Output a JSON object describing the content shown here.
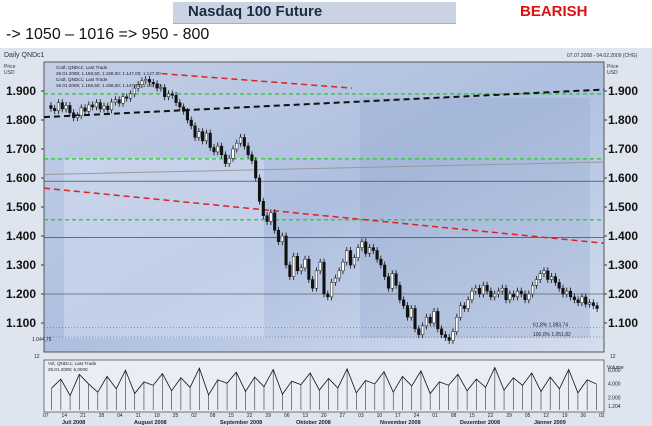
{
  "header": {
    "title": "Nasdaq 100 Future",
    "signal": "BEARISH"
  },
  "subtitle": "-> 1050 – 1016 => 950 - 800",
  "chart_data": {
    "type": "candlestick",
    "title": "Daily QNDc1",
    "date_range": "07.07.2008 - 04.02.2009 (CHG)",
    "y_unit": "Price\nUSD",
    "ylim": [
      1000,
      2000
    ],
    "y_ticks": [
      "1.900",
      "1.800",
      "1.700",
      "1.600",
      "1.500",
      "1.400",
      "1.300",
      "1.200",
      "1.100"
    ],
    "y_tick_values": [
      1900,
      1800,
      1700,
      1600,
      1500,
      1400,
      1300,
      1200,
      1100
    ],
    "legend": [
      "Cndl, QNDc1; Last Trade",
      "26.01.2009; 1.158,50; 1.158,50; 1.147,00; 1.147,00",
      "Cndl, QNDc1; Last Trade",
      "26.01.2009; 1.158,50; 1.158,50; 1.147,00; 1.147,00"
    ],
    "x_day_labels": [
      "07",
      "14",
      "21",
      "28",
      "04",
      "11",
      "18",
      "25",
      "02",
      "08",
      "15",
      "22",
      "29",
      "06",
      "13",
      "20",
      "27",
      "03",
      "10",
      "17",
      "24",
      "01",
      "08",
      "15",
      "22",
      "29",
      "05",
      "12",
      "19",
      "26",
      "02"
    ],
    "x_month_labels": [
      "Juli 2008",
      "August 2008",
      "September 2008",
      "Oktober 2008",
      "November 2008",
      "Dezember 2008",
      "Jänner 2009"
    ],
    "prices": [
      1840,
      1832,
      1860,
      1838,
      1850,
      1825,
      1808,
      1815,
      1842,
      1830,
      1852,
      1845,
      1860,
      1838,
      1848,
      1835,
      1862,
      1870,
      1858,
      1880,
      1875,
      1890,
      1910,
      1922,
      1935,
      1940,
      1930,
      1925,
      1910,
      1912,
      1880,
      1890,
      1885,
      1860,
      1845,
      1830,
      1800,
      1780,
      1740,
      1760,
      1728,
      1755,
      1705,
      1690,
      1710,
      1680,
      1650,
      1668,
      1700,
      1720,
      1740,
      1710,
      1680,
      1660,
      1600,
      1520,
      1470,
      1450,
      1480,
      1420,
      1380,
      1400,
      1300,
      1260,
      1330,
      1280,
      1290,
      1320,
      1250,
      1220,
      1280,
      1310,
      1200,
      1190,
      1240,
      1255,
      1280,
      1310,
      1350,
      1300,
      1325,
      1360,
      1380,
      1340,
      1360,
      1350,
      1320,
      1300,
      1260,
      1220,
      1270,
      1230,
      1180,
      1160,
      1120,
      1150,
      1080,
      1060,
      1090,
      1120,
      1100,
      1140,
      1080,
      1060,
      1050,
      1040,
      1070,
      1120,
      1160,
      1150,
      1180,
      1210,
      1220,
      1200,
      1230,
      1210,
      1190,
      1200,
      1210,
      1220,
      1180,
      1200,
      1190,
      1210,
      1200,
      1180,
      1200,
      1230,
      1250,
      1270,
      1280,
      1250,
      1260,
      1240,
      1220,
      1200,
      1210,
      1190,
      1180,
      1170,
      1190,
      1165,
      1170,
      1160,
      1150
    ],
    "horizontal_levels": [
      {
        "value": 1890,
        "color": "#22cc22",
        "style": "dashed"
      },
      {
        "value": 1666,
        "color": "#22cc22",
        "style": "dashed"
      },
      {
        "value": 1456,
        "color": "#22cc22",
        "style": "dashed"
      },
      {
        "value": 1589,
        "color": "#333333",
        "style": "solid"
      },
      {
        "value": 1395,
        "color": "#333333",
        "style": "solid"
      },
      {
        "value": 1200,
        "color": "#333333",
        "style": "solid"
      }
    ],
    "trendlines": [
      {
        "from": [
          0,
          1810
        ],
        "to": [
          1,
          1905
        ],
        "color": "#111111",
        "style": "dashed",
        "width": 2
      },
      {
        "from": [
          0,
          1612
        ],
        "to": [
          1,
          1655
        ],
        "color": "#999999",
        "style": "solid",
        "width": 1
      },
      {
        "from": [
          0,
          1565
        ],
        "to": [
          1,
          1375
        ],
        "color": "#dd2222",
        "style": "dashed",
        "width": 1.5
      },
      {
        "from": [
          0.21,
          1960
        ],
        "to": [
          0.55,
          1910
        ],
        "color": "#dd2222",
        "style": "dashed",
        "width": 1.5
      }
    ],
    "fib_labels": [
      "61,8%  1.083,74",
      "100,0%  1.051,82"
    ],
    "fib_values": [
      1083.74,
      1051.82
    ],
    "left_marker": "1.044,75",
    "volume": {
      "legend_line1": "Vol, QNDc1; Last Trade",
      "legend_line2": "26.01.2009; 6,0000",
      "unit": "Volume",
      "ticks": [
        "6.000",
        "4.000",
        "2.000"
      ],
      "tick_values": [
        6000,
        4000,
        2000
      ],
      "scale_label": "1.204",
      "values": [
        3200,
        4500,
        2100,
        5200,
        3800,
        2600,
        4900,
        3100,
        5800,
        2400,
        4100,
        3600,
        5300,
        2800,
        4700,
        3300,
        6100,
        2200,
        4400,
        3900,
        5500,
        2700,
        4800,
        3400,
        5900,
        2300,
        4200,
        3700,
        5400,
        2900,
        4600,
        3200,
        6000,
        2500,
        4300,
        3800,
        5600,
        2600,
        4900,
        3500,
        5700,
        2400,
        4100,
        3600,
        5200,
        2800,
        4500,
        3300,
        6200,
        2900,
        4700,
        3600,
        5400,
        2700,
        4800,
        3100,
        5900,
        2500,
        4400,
        3800
      ]
    },
    "scale_tag": "12"
  }
}
